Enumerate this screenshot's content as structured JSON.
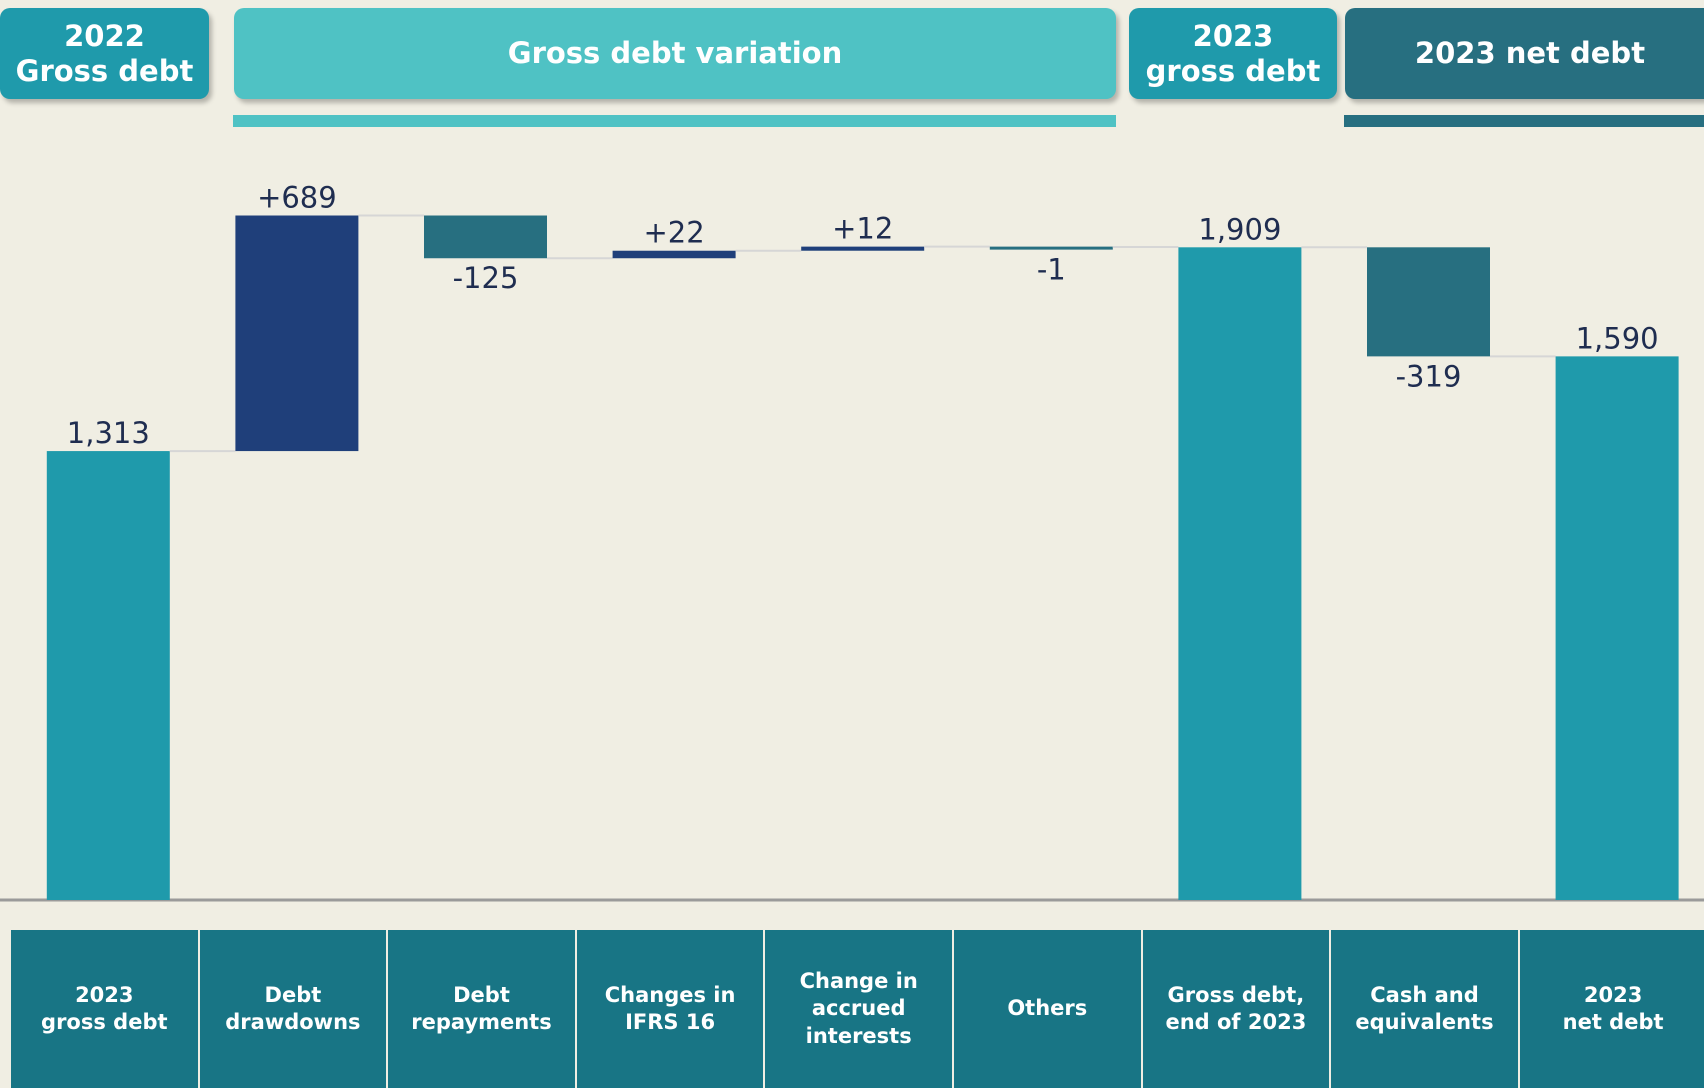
{
  "headers": [
    "2022\nGross debt",
    "Gross debt variation",
    "2023\ngross debt",
    "2023 net debt"
  ],
  "chart_data": {
    "type": "waterfall",
    "categories": [
      "2023\ngross debt",
      "Debt\ndrawdowns",
      "Debt\nrepayments",
      "Changes in\nIFRS 16",
      "Change in\naccrued\ninterests",
      "Others",
      "Gross debt,\nend of 2023",
      "Cash and\nequivalents",
      "2023\nnet debt"
    ],
    "values": [
      1313,
      689,
      -125,
      22,
      12,
      -1,
      1909,
      -319,
      1590
    ],
    "value_labels": [
      "1,313",
      "+689",
      "-125",
      "+22",
      "+12",
      "-1",
      "1,909",
      "-319",
      "1,590"
    ],
    "measure": [
      "absolute",
      "relative",
      "relative",
      "relative",
      "relative",
      "relative",
      "total",
      "relative",
      "total"
    ],
    "colors": {
      "total": "#1f9aab",
      "increase": "#1f3f7a",
      "decrease": "#276f80"
    },
    "ylim": [
      0,
      2100
    ]
  }
}
